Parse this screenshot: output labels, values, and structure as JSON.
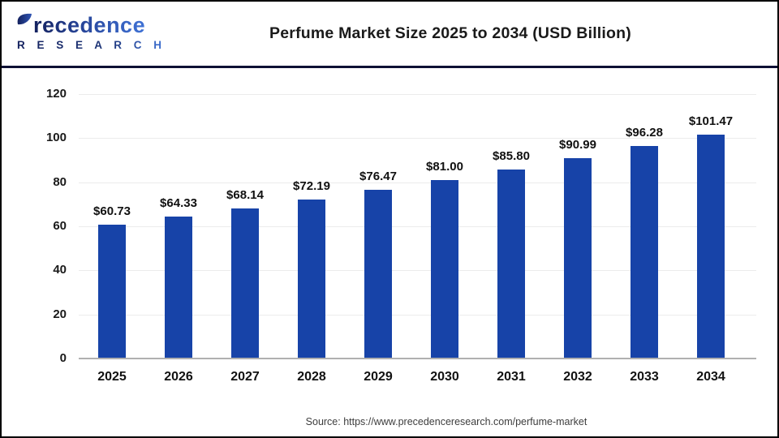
{
  "header": {
    "logo": {
      "line1": "recedence",
      "line2": "R E S E A R C H",
      "leaf_icon": "leaf-p-icon",
      "color_navy": "#14215e",
      "color_blue": "#3f72d6"
    },
    "title": "Perfume Market Size 2025 to 2034 (USD Billion)"
  },
  "chart_data": {
    "type": "bar",
    "title": "Perfume Market Size 2025 to 2034 (USD Billion)",
    "categories": [
      "2025",
      "2026",
      "2027",
      "2028",
      "2029",
      "2030",
      "2031",
      "2032",
      "2033",
      "2034"
    ],
    "values": [
      60.73,
      64.33,
      68.14,
      72.19,
      76.47,
      81.0,
      85.8,
      90.99,
      96.28,
      101.47
    ],
    "value_labels": [
      "$60.73",
      "$64.33",
      "$68.14",
      "$72.19",
      "$76.47",
      "$81.00",
      "$85.80",
      "$90.99",
      "$96.28",
      "$101.47"
    ],
    "xlabel": "",
    "ylabel": "",
    "ylim": [
      0,
      120
    ],
    "yticks": [
      0,
      20,
      40,
      60,
      80,
      100,
      120
    ],
    "grid": true,
    "legend": false,
    "bar_color": "#1743a8",
    "gridline_color": "#ececec",
    "baseline_color": "#b0b0b0"
  },
  "footer": {
    "source": "Source: https://www.precedenceresearch.com/perfume-market"
  }
}
